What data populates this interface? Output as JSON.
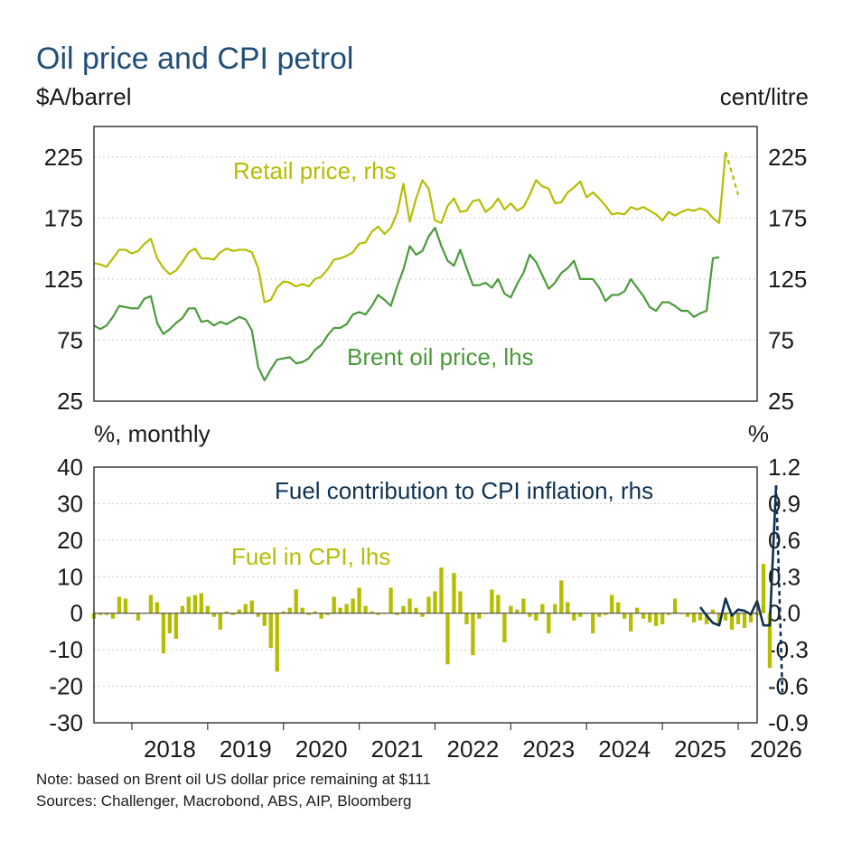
{
  "title": "Oil price and CPI petrol",
  "note": "Note: based on Brent oil US dollar price remaining at $111",
  "sources": "Sources: Challenger, Macrobond, ABS, AIP, Bloomberg",
  "colors": {
    "retail": "#b5bd00",
    "brent": "#4a9a3a",
    "fuel_cpi": "#b5bd00",
    "contribution": "#0d3252"
  },
  "chart_data": [
    {
      "type": "line",
      "panel": "top",
      "ylabel_left": "$A/barrel",
      "ylabel_right": "cent/litre",
      "ylim_left": [
        25,
        250
      ],
      "ylim_right": [
        25,
        250
      ],
      "yticks": [
        "25",
        "75",
        "125",
        "175",
        "225"
      ],
      "x_start": 2017.5,
      "x_step": 0.0833333,
      "grid": true,
      "series": [
        {
          "name": "Retail price, rhs",
          "axis": "right",
          "values": [
            138,
            137,
            135,
            142,
            149,
            149,
            146,
            148,
            154,
            158,
            142,
            134,
            129,
            132,
            139,
            147,
            150,
            142,
            142,
            141,
            147,
            150,
            148,
            149,
            149,
            147,
            134,
            106,
            108,
            118,
            123,
            122,
            119,
            121,
            119,
            125,
            127,
            133,
            141,
            142,
            144,
            147,
            154,
            155,
            164,
            168,
            162,
            167,
            179,
            203,
            172,
            191,
            206,
            199,
            173,
            171,
            185,
            191,
            180,
            181,
            189,
            190,
            180,
            184,
            191,
            182,
            187,
            181,
            184,
            194,
            206,
            201,
            199,
            187,
            188,
            196,
            200,
            205,
            192,
            196,
            191,
            185,
            178,
            179,
            178,
            184,
            182,
            184,
            181,
            178,
            173,
            180,
            177,
            180,
            182,
            181,
            183,
            181,
            175,
            171,
            229,
            212,
            194
          ],
          "dashed_from": 100
        },
        {
          "name": "Brent oil price, lhs",
          "axis": "left",
          "values": [
            87,
            84,
            87,
            94,
            103,
            102,
            101,
            101,
            109,
            111,
            89,
            80,
            84,
            89,
            93,
            101,
            101,
            90,
            91,
            87,
            90,
            88,
            91,
            94,
            92,
            83,
            53,
            42,
            51,
            59,
            60,
            61,
            56,
            57,
            60,
            67,
            71,
            79,
            85,
            85,
            88,
            96,
            98,
            96,
            103,
            112,
            108,
            103,
            119,
            133,
            152,
            145,
            148,
            160,
            167,
            152,
            140,
            136,
            149,
            134,
            120,
            120,
            122,
            118,
            125,
            113,
            110,
            121,
            130,
            145,
            139,
            128,
            117,
            122,
            130,
            134,
            140,
            125,
            125,
            125,
            118,
            107,
            112,
            112,
            115,
            125,
            118,
            111,
            102,
            99,
            106,
            106,
            103,
            99,
            99,
            94,
            97,
            99,
            142,
            143
          ],
          "dashed_from": null
        }
      ]
    },
    {
      "type": "bar",
      "panel": "bottom",
      "ylabel_left": "%, monthly",
      "ylabel_right": "%",
      "ylim_left": [
        -30,
        40
      ],
      "ylim_right": [
        -0.9,
        1.2
      ],
      "yticks_left": [
        "-30",
        "-20",
        "-10",
        "0",
        "10",
        "20",
        "30",
        "40"
      ],
      "yticks_right": [
        "-0.9",
        "-0.6",
        "-0.3",
        "0.0",
        "0.3",
        "0.6",
        "0.9",
        "1.2"
      ],
      "x_start": 2017.5,
      "x_step": 0.0833333,
      "grid": true,
      "series": [
        {
          "name": "Fuel in CPI, lhs",
          "axis": "left",
          "kind": "bar",
          "values": [
            -1.5,
            -0.5,
            -0.5,
            -1.5,
            4.5,
            4,
            0,
            -2,
            0,
            5,
            3,
            -11,
            -5.5,
            -7,
            2,
            4.5,
            5,
            5.5,
            2,
            -1,
            -4.5,
            0.5,
            -0.5,
            1,
            2.5,
            3.5,
            -1,
            -3.5,
            -9.5,
            -16,
            0.5,
            1.5,
            6.5,
            1.5,
            -0.5,
            0.5,
            -1.5,
            -0.5,
            4.5,
            1.5,
            2.5,
            4,
            7,
            2,
            0.5,
            -0.5,
            0,
            7,
            -0.5,
            2,
            4,
            1.5,
            -1,
            4.5,
            6,
            12.5,
            -14,
            11,
            6,
            -3,
            -11.5,
            -1.5,
            0,
            6.5,
            5,
            -8,
            2,
            1,
            4,
            -1,
            -2,
            2.5,
            -5.5,
            2.5,
            9,
            3,
            -2,
            -1,
            0,
            -5.5,
            -1,
            -0.5,
            5,
            3,
            -1.5,
            -5,
            1.5,
            -1.5,
            -2.5,
            -3.5,
            -3,
            -0.5,
            4,
            0,
            -1,
            -2.5,
            -2,
            -3,
            1,
            -3,
            -2,
            -4.5,
            -3,
            -4,
            -2.5,
            -0.5,
            13.5,
            -15
          ]
        },
        {
          "name": "Fuel contribution to CPI inflation, rhs",
          "axis": "right",
          "kind": "line",
          "x_start_index": 96,
          "values": [
            0.05,
            -0.02,
            -0.08,
            -0.1,
            0.12,
            -0.02,
            0.03,
            0.02,
            -0.01,
            0.1,
            -0.1,
            -0.1,
            1.05,
            -0.65
          ],
          "dashed_from": 12
        }
      ]
    }
  ],
  "x_axis": {
    "labels": [
      "2018",
      "2019",
      "2020",
      "2021",
      "2022",
      "2023",
      "2024",
      "2025",
      "2026"
    ]
  },
  "annotations": {
    "retail": "Retail price, rhs",
    "brent": "Brent oil price, lhs",
    "fuel_cpi": "Fuel in CPI, lhs",
    "contribution": "Fuel contribution to CPI inflation, rhs"
  }
}
